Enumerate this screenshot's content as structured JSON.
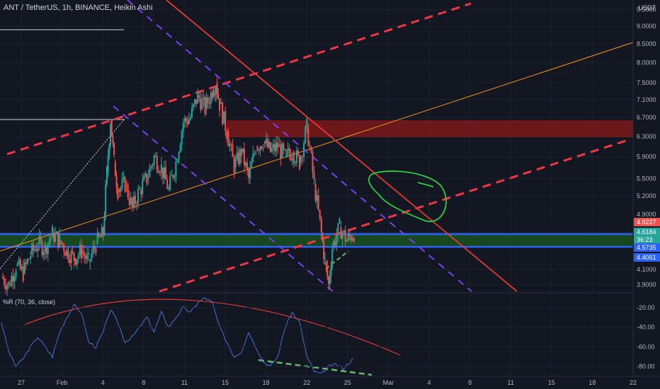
{
  "title": "ANT / TetherUS, 1h, BINANCE, Heikin Ashi",
  "price_unit": "USDT",
  "oscillator_label": "%R (70, 36, close)",
  "colors": {
    "background": "#131722",
    "grid": "#1e222d",
    "up": "#26a69a",
    "down": "#ef5350",
    "red_trend": "#e53935",
    "dash_red": "#f23645",
    "dash_purple": "#7b3ff2",
    "orange": "#f7931a",
    "blue": "#2962ff",
    "green_zone": "#1b5e20",
    "supply_zone": "#8b1a1a",
    "osc_line": "#4a6fd8",
    "green_dash": "#66bb6a",
    "green_circle": "#2ecc40"
  },
  "chart_data": {
    "type": "line",
    "price_axis": {
      "ticks": [
        3.9,
        4.1,
        4.4061,
        4.5735,
        4.6184,
        4.6227,
        4.9,
        5.2,
        5.5,
        5.9,
        6.3,
        6.7,
        7.1,
        7.5,
        8.0,
        8.5,
        9.0,
        9.5
      ],
      "tick_labels": [
        "3.9000",
        "4.1000",
        "4.4061",
        "4.5735",
        "4.6184",
        "4.6227",
        "4.9000",
        "5.2000",
        "5.5000",
        "5.9000",
        "6.3000",
        "6.7000",
        "7.1000",
        "7.5000",
        "8.0000",
        "8.5000",
        "9.0000",
        "9.5000"
      ],
      "scale": "log"
    },
    "price_badges": [
      {
        "label": "4.6227",
        "color": "#ef5350"
      },
      {
        "label": "4.6184",
        "color": "#26a69a"
      },
      {
        "label": "36:23",
        "color": "#26a69a"
      },
      {
        "label": "4.5735",
        "color": "#2962ff"
      },
      {
        "label": "4.4061",
        "color": "#2962ff"
      }
    ],
    "x_ticks": [
      "27",
      "Feb",
      "4",
      "8",
      "11",
      "15",
      "18",
      "22",
      "25",
      "Mar",
      "4",
      "8",
      "11",
      "15",
      "18",
      "22"
    ],
    "price_series": {
      "name": "ANTUSDT",
      "points": [
        [
          0,
          4.0
        ],
        [
          2,
          3.9
        ],
        [
          4,
          4.15
        ],
        [
          6,
          4.05
        ],
        [
          8,
          4.3
        ],
        [
          10,
          4.45
        ],
        [
          12,
          4.4
        ],
        [
          14,
          4.6
        ],
        [
          16,
          4.5
        ],
        [
          18,
          4.35
        ],
        [
          20,
          4.25
        ],
        [
          22,
          4.35
        ],
        [
          24,
          4.2
        ],
        [
          26,
          4.45
        ],
        [
          28,
          4.6
        ],
        [
          29,
          5.6
        ],
        [
          30,
          6.65
        ],
        [
          31,
          5.8
        ],
        [
          32,
          5.3
        ],
        [
          34,
          5.4
        ],
        [
          36,
          5.0
        ],
        [
          38,
          5.3
        ],
        [
          40,
          5.5
        ],
        [
          42,
          5.9
        ],
        [
          44,
          5.7
        ],
        [
          46,
          5.3
        ],
        [
          48,
          5.8
        ],
        [
          50,
          6.6
        ],
        [
          52,
          6.7
        ],
        [
          54,
          7.2
        ],
        [
          56,
          6.9
        ],
        [
          58,
          7.3
        ],
        [
          59,
          7.5
        ],
        [
          60,
          7.0
        ],
        [
          62,
          6.4
        ],
        [
          64,
          5.7
        ],
        [
          66,
          6.0
        ],
        [
          68,
          5.5
        ],
        [
          70,
          6.1
        ],
        [
          72,
          6.2
        ],
        [
          74,
          6.0
        ],
        [
          76,
          6.1
        ],
        [
          78,
          5.9
        ],
        [
          80,
          6.0
        ],
        [
          82,
          5.8
        ],
        [
          84,
          6.5
        ],
        [
          86,
          5.4
        ],
        [
          88,
          4.6
        ],
        [
          89,
          4.2
        ],
        [
          90,
          3.9
        ],
        [
          91,
          4.4
        ],
        [
          93,
          4.7
        ],
        [
          95,
          4.5
        ],
        [
          97,
          4.62
        ]
      ]
    },
    "oscillator": {
      "name": "%R (70, 36, close)",
      "ticks": [
        -20,
        -40,
        -60,
        -80
      ],
      "tick_labels": [
        "-20.00",
        "-40.00",
        "-60.00",
        "-80.00"
      ],
      "range": [
        -90,
        -5
      ],
      "points": [
        [
          0,
          -35
        ],
        [
          2,
          -65
        ],
        [
          4,
          -80
        ],
        [
          6,
          -72
        ],
        [
          8,
          -60
        ],
        [
          10,
          -50
        ],
        [
          12,
          -60
        ],
        [
          14,
          -70
        ],
        [
          16,
          -45
        ],
        [
          18,
          -30
        ],
        [
          20,
          -18
        ],
        [
          22,
          -25
        ],
        [
          24,
          -55
        ],
        [
          26,
          -60
        ],
        [
          28,
          -45
        ],
        [
          30,
          -22
        ],
        [
          32,
          -35
        ],
        [
          34,
          -55
        ],
        [
          36,
          -50
        ],
        [
          38,
          -40
        ],
        [
          40,
          -30
        ],
        [
          42,
          -45
        ],
        [
          44,
          -25
        ],
        [
          46,
          -40
        ],
        [
          48,
          -30
        ],
        [
          50,
          -20
        ],
        [
          52,
          -25
        ],
        [
          54,
          -15
        ],
        [
          56,
          -10
        ],
        [
          58,
          -15
        ],
        [
          60,
          -40
        ],
        [
          62,
          -55
        ],
        [
          64,
          -70
        ],
        [
          66,
          -65
        ],
        [
          68,
          -45
        ],
        [
          70,
          -60
        ],
        [
          72,
          -75
        ],
        [
          74,
          -80
        ],
        [
          76,
          -70
        ],
        [
          78,
          -40
        ],
        [
          80,
          -25
        ],
        [
          82,
          -35
        ],
        [
          84,
          -70
        ],
        [
          86,
          -85
        ],
        [
          88,
          -88
        ],
        [
          90,
          -80
        ],
        [
          92,
          -78
        ],
        [
          94,
          -82
        ],
        [
          96,
          -75
        ],
        [
          97,
          -72
        ]
      ]
    }
  }
}
